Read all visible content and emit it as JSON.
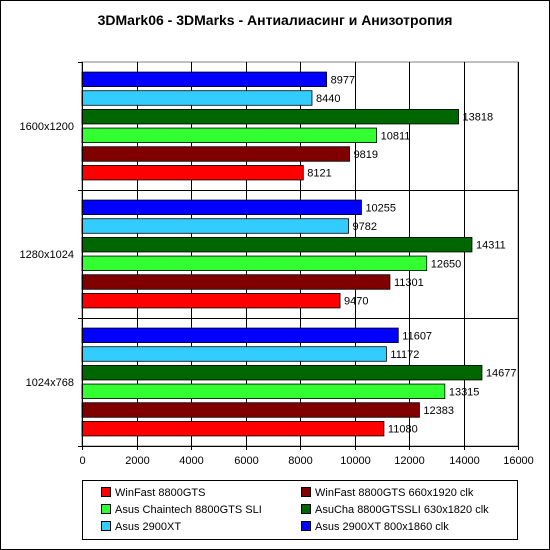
{
  "chart_data": {
    "type": "bar",
    "orientation": "horizontal",
    "title": "3DMark06 - 3DMarks - Антиалиасинг и Анизотропия",
    "xlabel": "",
    "ylabel": "",
    "xlim": [
      0,
      16000
    ],
    "xticks": [
      "0",
      "2000",
      "4000",
      "6000",
      "8000",
      "10000",
      "12000",
      "14000",
      "16000"
    ],
    "grid": true,
    "legend_position": "bottom",
    "categories": [
      "1600x1200",
      "1280x1024",
      "1024x768"
    ],
    "series": [
      {
        "name": "Asus 2900XT 800x1860 clk",
        "color": "#0000ff",
        "values": [
          8977,
          10255,
          11607
        ]
      },
      {
        "name": "Asus 2900XT",
        "color": "#33ccff",
        "values": [
          8440,
          9782,
          11172
        ]
      },
      {
        "name": "AsuCha 8800GTSSLI 630x1820 clk",
        "color": "#006600",
        "values": [
          13818,
          14311,
          14677
        ]
      },
      {
        "name": "Asus Chaintech 8800GTS SLI",
        "color": "#33ff33",
        "values": [
          10811,
          12650,
          13315
        ]
      },
      {
        "name": "WinFast 8800GTS 660x1920 clk",
        "color": "#800000",
        "values": [
          9819,
          11301,
          12383
        ]
      },
      {
        "name": "WinFast 8800GTS",
        "color": "#ff0000",
        "values": [
          8121,
          9470,
          11080
        ]
      }
    ],
    "legend_order": [
      5,
      4,
      3,
      2,
      1,
      0
    ]
  }
}
